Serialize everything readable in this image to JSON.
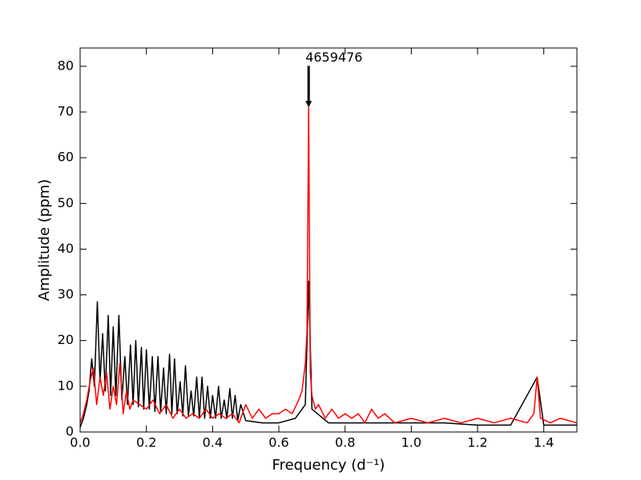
{
  "chart_data": {
    "type": "line",
    "x_label": "Frequency  (d⁻¹)",
    "y_label": "Amplitude  (ppm)",
    "annotation": "4659476",
    "xlim": [
      0,
      1.5
    ],
    "xticks": [
      {
        "value": 0,
        "label": "0.0"
      },
      0.2,
      0.4,
      0.6,
      0.8,
      {
        "value": 1,
        "label": "1.0"
      },
      1.2,
      1.4
    ],
    "ylim": [
      0,
      84
    ],
    "yticks": [
      0,
      10,
      20,
      30,
      40,
      50,
      60,
      70,
      80
    ],
    "grid": false,
    "series": [
      {
        "color": "#000000",
        "x": [
          0,
          0.01,
          0.02,
          0.027,
          0.035,
          0.043,
          0.052,
          0.06,
          0.068,
          0.076,
          0.085,
          0.092,
          0.1,
          0.108,
          0.117,
          0.126,
          0.135,
          0.143,
          0.152,
          0.16,
          0.168,
          0.176,
          0.185,
          0.192,
          0.2,
          0.209,
          0.218,
          0.226,
          0.235,
          0.243,
          0.252,
          0.26,
          0.27,
          0.277,
          0.285,
          0.293,
          0.302,
          0.31,
          0.318,
          0.327,
          0.335,
          0.343,
          0.352,
          0.36,
          0.368,
          0.376,
          0.385,
          0.393,
          0.4,
          0.409,
          0.418,
          0.426,
          0.435,
          0.443,
          0.452,
          0.46,
          0.468,
          0.476,
          0.485,
          0.5,
          0.55,
          0.6,
          0.65,
          0.68,
          0.69,
          0.7,
          0.75,
          0.8,
          0.9,
          1.0,
          1.1,
          1.2,
          1.3,
          1.38,
          1.4,
          1.5
        ],
        "values": [
          1,
          3,
          6,
          9,
          16,
          10,
          28.5,
          11,
          21.5,
          9,
          25.5,
          8,
          23,
          8,
          25.5,
          7,
          16.5,
          6,
          19,
          6,
          20,
          5.5,
          18.5,
          5,
          18,
          5,
          16.5,
          4.5,
          16.5,
          4.5,
          14,
          4,
          17,
          4,
          16,
          4,
          11,
          3.5,
          14.5,
          3.5,
          9,
          3.5,
          12,
          3,
          12,
          3,
          10,
          3,
          8,
          3,
          10,
          3,
          7,
          3,
          9.5,
          3,
          8,
          2.5,
          6,
          2.5,
          2,
          2,
          3,
          6,
          33,
          5,
          2,
          2,
          2,
          2,
          2,
          1.5,
          1.5,
          12,
          1.5,
          1.5
        ]
      },
      {
        "color": "#ff0000",
        "x": [
          0,
          0.01,
          0.02,
          0.03,
          0.04,
          0.05,
          0.06,
          0.07,
          0.08,
          0.09,
          0.1,
          0.11,
          0.12,
          0.13,
          0.14,
          0.15,
          0.16,
          0.18,
          0.2,
          0.22,
          0.24,
          0.26,
          0.28,
          0.3,
          0.32,
          0.34,
          0.36,
          0.38,
          0.4,
          0.42,
          0.44,
          0.46,
          0.48,
          0.5,
          0.52,
          0.54,
          0.56,
          0.58,
          0.6,
          0.62,
          0.64,
          0.66,
          0.67,
          0.68,
          0.685,
          0.69,
          0.695,
          0.7,
          0.71,
          0.72,
          0.74,
          0.76,
          0.78,
          0.8,
          0.82,
          0.84,
          0.86,
          0.88,
          0.9,
          0.92,
          0.95,
          1.0,
          1.05,
          1.1,
          1.15,
          1.2,
          1.25,
          1.3,
          1.35,
          1.37,
          1.38,
          1.39,
          1.42,
          1.45,
          1.5
        ],
        "values": [
          2,
          4,
          7,
          11,
          14,
          6,
          12,
          8,
          13,
          5,
          10,
          6,
          15,
          4,
          9,
          5,
          7,
          6,
          5,
          7,
          4,
          6,
          3,
          5,
          3,
          4,
          3,
          5,
          3,
          4,
          3,
          4,
          2,
          6,
          3,
          5,
          3,
          4,
          4,
          5,
          4,
          7,
          9,
          15,
          22,
          71,
          13,
          8,
          5,
          6,
          3,
          5,
          3,
          4,
          3,
          4,
          2,
          5,
          3,
          4,
          2,
          3,
          2,
          3,
          2,
          3,
          2,
          3,
          2,
          4,
          12,
          3,
          2,
          3,
          2
        ]
      }
    ]
  }
}
